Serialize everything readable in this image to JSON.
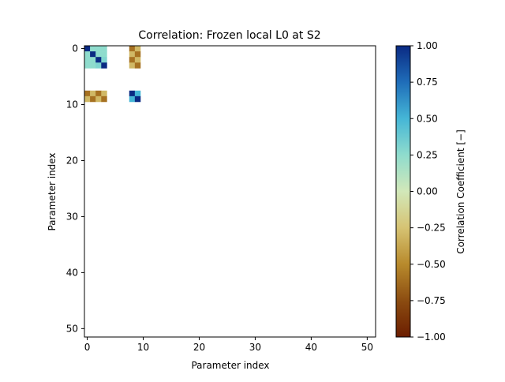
{
  "chart_data": {
    "type": "heatmap",
    "title": "Correlation: Frozen local L0 at S2",
    "xlabel": "Parameter index",
    "ylabel": "Parameter index",
    "size": 52,
    "xlim": [
      -0.5,
      51.5
    ],
    "ylim": [
      51.5,
      -0.5
    ],
    "xticks": [
      0,
      10,
      20,
      30,
      40,
      50
    ],
    "yticks": [
      0,
      10,
      20,
      30,
      40,
      50
    ],
    "colorbar": {
      "label": "Correlation Coefficient [−]",
      "range": [
        -1.0,
        1.0
      ],
      "ticks": [
        1.0,
        0.75,
        0.5,
        0.25,
        0.0,
        -0.25,
        -0.5,
        -0.75,
        -1.0
      ],
      "tick_labels": [
        "1.00",
        "0.75",
        "0.50",
        "0.25",
        "0.00",
        "−0.25",
        "−0.50",
        "−0.75",
        "−1.00"
      ],
      "colors": [
        [
          0.0,
          "#6b1d00"
        ],
        [
          0.12,
          "#8a4a10"
        ],
        [
          0.25,
          "#b88a2c"
        ],
        [
          0.375,
          "#d6c373"
        ],
        [
          0.5,
          "#d2e8b9"
        ],
        [
          0.625,
          "#8fdccd"
        ],
        [
          0.75,
          "#45b6d6"
        ],
        [
          0.875,
          "#1f6db9"
        ],
        [
          1.0,
          "#0a2a83"
        ]
      ]
    },
    "cells": [
      {
        "row": 0,
        "col": 0,
        "value": 1.0
      },
      {
        "row": 0,
        "col": 1,
        "value": 0.25
      },
      {
        "row": 0,
        "col": 2,
        "value": 0.25
      },
      {
        "row": 0,
        "col": 3,
        "value": 0.25
      },
      {
        "row": 1,
        "col": 0,
        "value": 0.25
      },
      {
        "row": 1,
        "col": 1,
        "value": 1.0
      },
      {
        "row": 1,
        "col": 2,
        "value": 0.25
      },
      {
        "row": 1,
        "col": 3,
        "value": 0.25
      },
      {
        "row": 2,
        "col": 0,
        "value": 0.25
      },
      {
        "row": 2,
        "col": 1,
        "value": 0.25
      },
      {
        "row": 2,
        "col": 2,
        "value": 1.0
      },
      {
        "row": 2,
        "col": 3,
        "value": 0.3
      },
      {
        "row": 3,
        "col": 0,
        "value": 0.25
      },
      {
        "row": 3,
        "col": 1,
        "value": 0.25
      },
      {
        "row": 3,
        "col": 2,
        "value": 0.3
      },
      {
        "row": 3,
        "col": 3,
        "value": 1.0
      },
      {
        "row": 0,
        "col": 8,
        "value": -0.6
      },
      {
        "row": 0,
        "col": 9,
        "value": -0.3
      },
      {
        "row": 1,
        "col": 8,
        "value": -0.3
      },
      {
        "row": 1,
        "col": 9,
        "value": -0.6
      },
      {
        "row": 2,
        "col": 8,
        "value": -0.6
      },
      {
        "row": 2,
        "col": 9,
        "value": -0.3
      },
      {
        "row": 3,
        "col": 8,
        "value": -0.3
      },
      {
        "row": 3,
        "col": 9,
        "value": -0.6
      },
      {
        "row": 8,
        "col": 0,
        "value": -0.6
      },
      {
        "row": 8,
        "col": 1,
        "value": -0.3
      },
      {
        "row": 8,
        "col": 2,
        "value": -0.6
      },
      {
        "row": 8,
        "col": 3,
        "value": -0.3
      },
      {
        "row": 9,
        "col": 0,
        "value": -0.3
      },
      {
        "row": 9,
        "col": 1,
        "value": -0.6
      },
      {
        "row": 9,
        "col": 2,
        "value": -0.3
      },
      {
        "row": 9,
        "col": 3,
        "value": -0.6
      },
      {
        "row": 8,
        "col": 8,
        "value": 1.0
      },
      {
        "row": 8,
        "col": 9,
        "value": 0.5
      },
      {
        "row": 9,
        "col": 8,
        "value": 0.5
      },
      {
        "row": 9,
        "col": 9,
        "value": 1.0
      }
    ]
  }
}
